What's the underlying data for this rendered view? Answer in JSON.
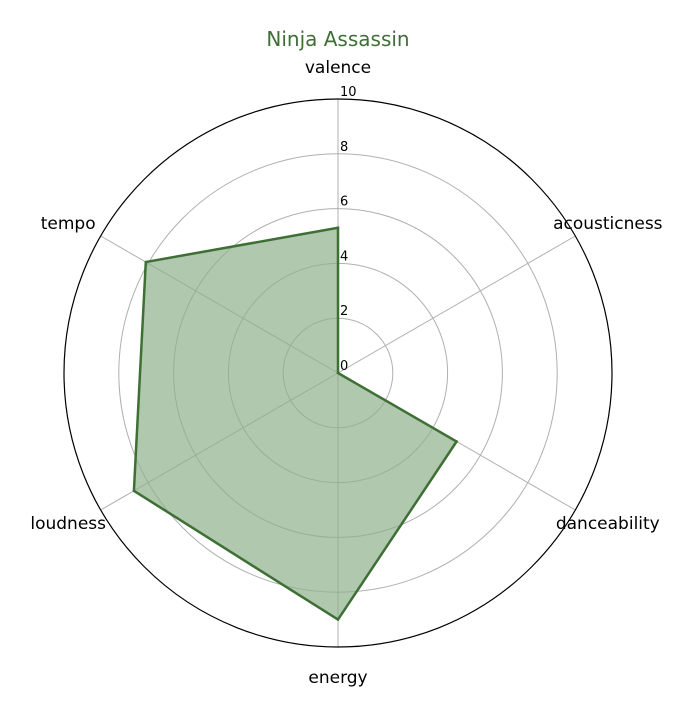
{
  "chart_data": {
    "type": "radar",
    "title": "Ninja Assassin",
    "categories": [
      "valence",
      "acousticness",
      "danceability",
      "energy",
      "loudness",
      "tempo"
    ],
    "series": [
      {
        "name": "Ninja Assassin",
        "values": [
          5.3,
          0.0,
          5.0,
          9.0,
          8.6,
          8.1
        ]
      }
    ],
    "rlim": [
      0,
      10
    ],
    "rticks": [
      "0",
      "2",
      "4",
      "6",
      "8",
      "10"
    ],
    "colors": {
      "title": "#3e6f35",
      "line": "#3e6f35",
      "fill": "#8fb08a"
    }
  }
}
